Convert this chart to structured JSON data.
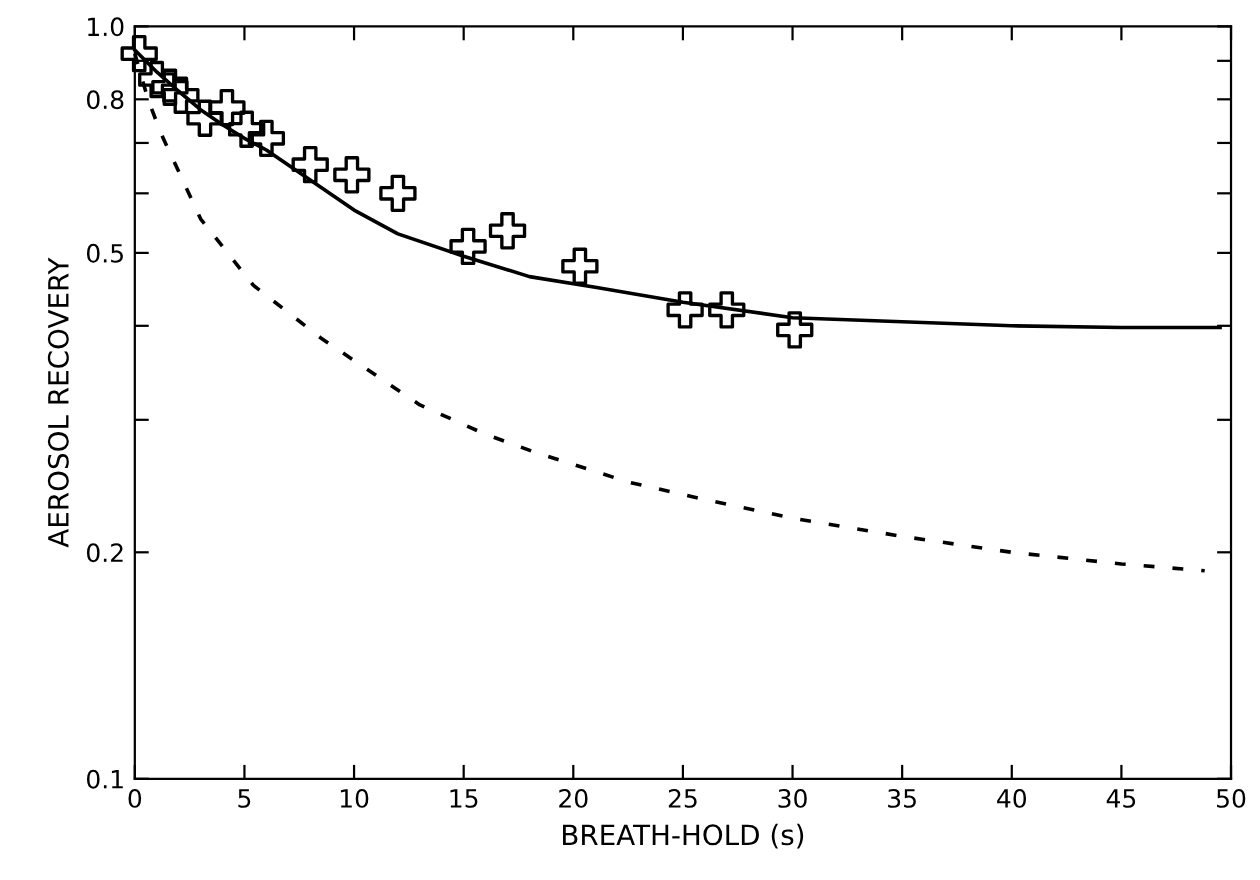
{
  "chart_data": {
    "type": "scatter",
    "xlabel": "BREATH-HOLD (s)",
    "ylabel": "AEROSOL RECOVERY",
    "log": "y",
    "xlim": [
      0,
      50
    ],
    "ylim": [
      0.1,
      1.0
    ],
    "xticks": [
      0,
      5,
      10,
      15,
      20,
      25,
      30,
      35,
      40,
      45,
      50
    ],
    "yticks": [
      {
        "value": 0.1,
        "label": "0.1"
      },
      {
        "value": 0.2,
        "label": "0.2"
      },
      {
        "value": 0.3,
        "label": null
      },
      {
        "value": 0.4,
        "label": null
      },
      {
        "value": 0.5,
        "label": "0.5"
      },
      {
        "value": 0.6,
        "label": null
      },
      {
        "value": 0.7,
        "label": null
      },
      {
        "value": 0.8,
        "label": "0.8"
      },
      {
        "value": 0.9,
        "label": null
      },
      {
        "value": 1.0,
        "label": "1.0"
      }
    ],
    "grid": false,
    "series": [
      {
        "type": "line",
        "color": "#000000",
        "line_style": "solid",
        "marker": "none",
        "x": [
          0,
          1,
          2,
          3,
          4,
          5,
          6,
          8,
          10,
          12,
          15,
          18,
          21,
          25,
          30,
          35,
          40,
          45,
          49.5
        ],
        "values": [
          0.93,
          0.87,
          0.82,
          0.775,
          0.74,
          0.71,
          0.685,
          0.625,
          0.57,
          0.53,
          0.495,
          0.465,
          0.45,
          0.43,
          0.41,
          0.405,
          0.4,
          0.398,
          0.398
        ]
      },
      {
        "type": "line",
        "color": "#000000",
        "line_style": "dashed",
        "marker": "none",
        "x": [
          0,
          0.6,
          1.2,
          3,
          5.4,
          8.5,
          13,
          16,
          18.2,
          22.5,
          26,
          30,
          35,
          40,
          45,
          48.8
        ],
        "values": [
          0.92,
          0.8,
          0.72,
          0.555,
          0.453,
          0.385,
          0.314,
          0.287,
          0.272,
          0.248,
          0.235,
          0.222,
          0.21,
          0.2,
          0.193,
          0.189
        ]
      },
      {
        "color": "#000000",
        "marker": "cross",
        "x": [
          0.2,
          1,
          1.6,
          2.1,
          3.2,
          4.2,
          5.1,
          6.0,
          8.0,
          9.9,
          12.0,
          15.2,
          17.0,
          20.3,
          25.1,
          27.0,
          30.1
        ],
        "values": [
          0.92,
          0.85,
          0.83,
          0.81,
          0.755,
          0.78,
          0.73,
          0.71,
          0.655,
          0.635,
          0.6,
          0.51,
          0.535,
          0.48,
          0.42,
          0.42,
          0.395
        ]
      }
    ]
  }
}
